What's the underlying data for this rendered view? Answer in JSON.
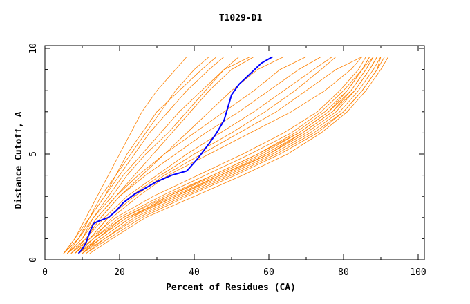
{
  "chart_data": {
    "type": "line",
    "title": "T1029-D1",
    "xlabel": "Percent of Residues (CA)",
    "ylabel": "Distance Cutoff, A",
    "xlim": [
      0,
      100
    ],
    "ylim": [
      0,
      10
    ],
    "x_ticks": [
      "0",
      "20",
      "40",
      "60",
      "80",
      "100"
    ],
    "y_ticks": [
      "0",
      "5",
      "10"
    ],
    "grid": false,
    "colors": {
      "others": "#ff8000",
      "highlight": "#0000ff"
    },
    "others_cutoffs": [
      0.3,
      1,
      2,
      3,
      4,
      5,
      6,
      7,
      8,
      9,
      9.6
    ],
    "others_percent": [
      [
        9,
        14,
        21,
        32,
        45,
        57,
        68,
        76,
        82,
        86,
        88
      ],
      [
        10,
        15,
        23,
        35,
        48,
        60,
        70,
        78,
        83,
        87,
        89
      ],
      [
        11,
        16,
        25,
        37,
        50,
        62,
        72,
        80,
        85,
        89,
        91
      ],
      [
        8,
        13,
        20,
        31,
        43,
        55,
        66,
        74,
        80,
        85,
        87
      ],
      [
        9,
        14,
        22,
        34,
        47,
        59,
        69,
        77,
        82,
        86,
        88
      ],
      [
        10,
        16,
        24,
        36,
        49,
        61,
        71,
        79,
        84,
        88,
        90
      ],
      [
        12,
        18,
        27,
        40,
        53,
        65,
        74,
        81,
        86,
        90,
        92
      ],
      [
        8,
        12,
        19,
        29,
        41,
        53,
        64,
        73,
        79,
        84,
        86
      ],
      [
        9,
        15,
        23,
        33,
        46,
        58,
        68,
        76,
        81,
        85,
        87
      ],
      [
        10,
        14,
        22,
        35,
        47,
        60,
        69,
        77,
        83,
        87,
        89
      ],
      [
        11,
        17,
        26,
        38,
        51,
        63,
        73,
        80,
        85,
        89,
        90
      ],
      [
        9,
        13,
        21,
        33,
        45,
        57,
        67,
        75,
        81,
        85,
        88
      ],
      [
        7,
        12,
        17,
        24,
        32,
        42,
        52,
        62,
        70,
        78,
        85
      ],
      [
        6,
        11,
        16,
        22,
        30,
        38,
        47,
        56,
        64,
        72,
        77
      ],
      [
        8,
        13,
        18,
        25,
        33,
        44,
        55,
        66,
        75,
        82,
        85
      ],
      [
        7,
        11,
        15,
        20,
        27,
        35,
        43,
        52,
        60,
        68,
        74
      ],
      [
        6,
        10,
        14,
        19,
        25,
        32,
        40,
        48,
        56,
        63,
        70
      ],
      [
        8,
        12,
        17,
        23,
        31,
        40,
        50,
        59,
        67,
        74,
        78
      ],
      [
        5,
        8,
        11,
        14,
        17,
        20,
        23,
        26,
        30,
        35,
        38
      ],
      [
        5,
        9,
        12,
        16,
        20,
        24,
        28,
        33,
        38,
        44,
        48
      ],
      [
        6,
        9,
        13,
        17,
        21,
        26,
        31,
        36,
        42,
        48,
        52
      ],
      [
        5,
        8,
        12,
        15,
        19,
        23,
        27,
        31,
        35,
        40,
        44
      ],
      [
        6,
        10,
        14,
        19,
        24,
        29,
        34,
        39,
        44,
        50,
        56
      ],
      [
        6,
        10,
        13,
        18,
        22,
        27,
        33,
        38,
        43,
        48,
        55
      ],
      [
        5,
        9,
        12,
        16,
        19,
        22,
        26,
        30,
        36,
        42,
        46
      ],
      [
        7,
        11,
        15,
        20,
        26,
        32,
        38,
        44,
        50,
        57,
        64
      ]
    ],
    "highlight": {
      "x": [
        9,
        10,
        11,
        12,
        13,
        14,
        17,
        19,
        21,
        24,
        27,
        30,
        34,
        38,
        41,
        44,
        46,
        48,
        49,
        50,
        52,
        55,
        58,
        61
      ],
      "y": [
        0.3,
        0.5,
        0.8,
        1.3,
        1.7,
        1.8,
        2.0,
        2.3,
        2.7,
        3.1,
        3.4,
        3.7,
        4.0,
        4.2,
        4.8,
        5.5,
        6.0,
        6.6,
        7.2,
        7.8,
        8.3,
        8.8,
        9.3,
        9.6
      ]
    }
  }
}
